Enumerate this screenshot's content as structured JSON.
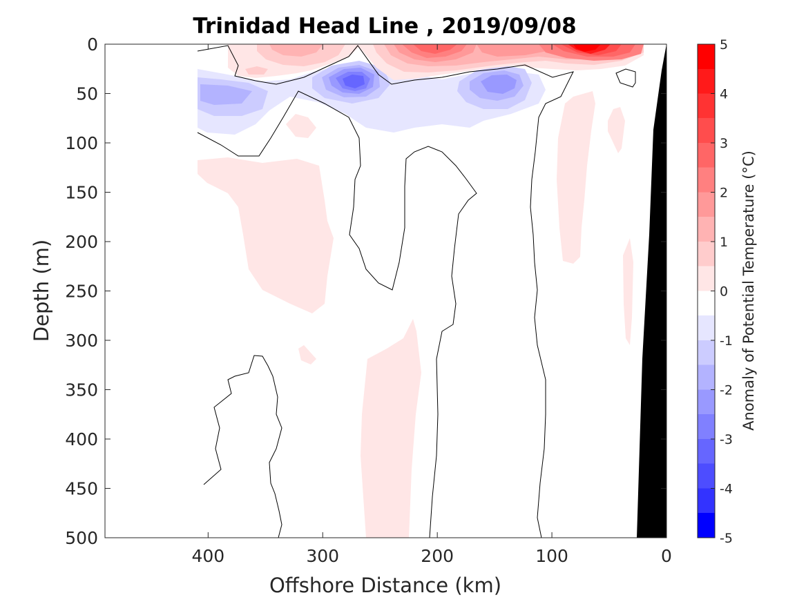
{
  "chart_data": {
    "type": "contour",
    "title": "Trinidad Head Line , 2019/09/08",
    "xlabel": "Offshore Distance (km)",
    "ylabel": "Depth (m)",
    "xlim": [
      490,
      0
    ],
    "ylim": [
      0,
      500
    ],
    "y_reversed": true,
    "x_reversed": true,
    "xticks": [
      400,
      300,
      200,
      100,
      0
    ],
    "yticks": [
      0,
      50,
      100,
      150,
      200,
      250,
      300,
      350,
      400,
      450,
      500
    ],
    "colorbar": {
      "label": "Anomaly of Potential Temperature (°C)",
      "range": [
        -5,
        5
      ],
      "ticks": [
        5,
        4,
        3,
        2,
        1,
        0,
        -1,
        -2,
        -3,
        -4,
        -5
      ],
      "level_step": 0.5,
      "colors": [
        "#0000ff",
        "#1a1aff",
        "#3333ff",
        "#4d4dff",
        "#6666ff",
        "#8080ff",
        "#9999ff",
        "#b3b3ff",
        "#ccccff",
        "#e6e6ff",
        "#ffffff",
        "#ffffff",
        "#ffe6e6",
        "#ffcccc",
        "#ffb3b3",
        "#ff9999",
        "#ff8080",
        "#ff6666",
        "#ff4d4d",
        "#ff3333",
        "#ff1a1a",
        "#ff0000"
      ]
    },
    "regions": [
      {
        "sign": "negative",
        "peak": -3.5,
        "location": "x 270 km, 20-55 m"
      },
      {
        "sign": "negative",
        "peak": -2.5,
        "location": "x 150 km, 30-55 m"
      },
      {
        "sign": "negative",
        "peak": -2.0,
        "location": "x 380 km, 40-70 m"
      },
      {
        "sign": "positive",
        "peak": 4.5,
        "location": "x 70 km, 0-20 m"
      },
      {
        "sign": "positive",
        "peak": 3.5,
        "location": "x 190 km, 0-30 m"
      },
      {
        "sign": "positive",
        "peak": 2.0,
        "location": "x 310 km, 0-25 m"
      },
      {
        "sign": "positive",
        "peak": 0.8,
        "location": "x 360 km, 120-270 m"
      },
      {
        "sign": "positive",
        "peak": 0.8,
        "location": "x 250 km, 280-500 m"
      },
      {
        "sign": "positive",
        "peak": 0.8,
        "location": "x 80 km, 50-220 m"
      }
    ],
    "bathymetry": {
      "color": "#000000",
      "shelf_points": [
        [
          0,
          0
        ],
        [
          10,
          90
        ],
        [
          25,
          500
        ]
      ]
    }
  }
}
